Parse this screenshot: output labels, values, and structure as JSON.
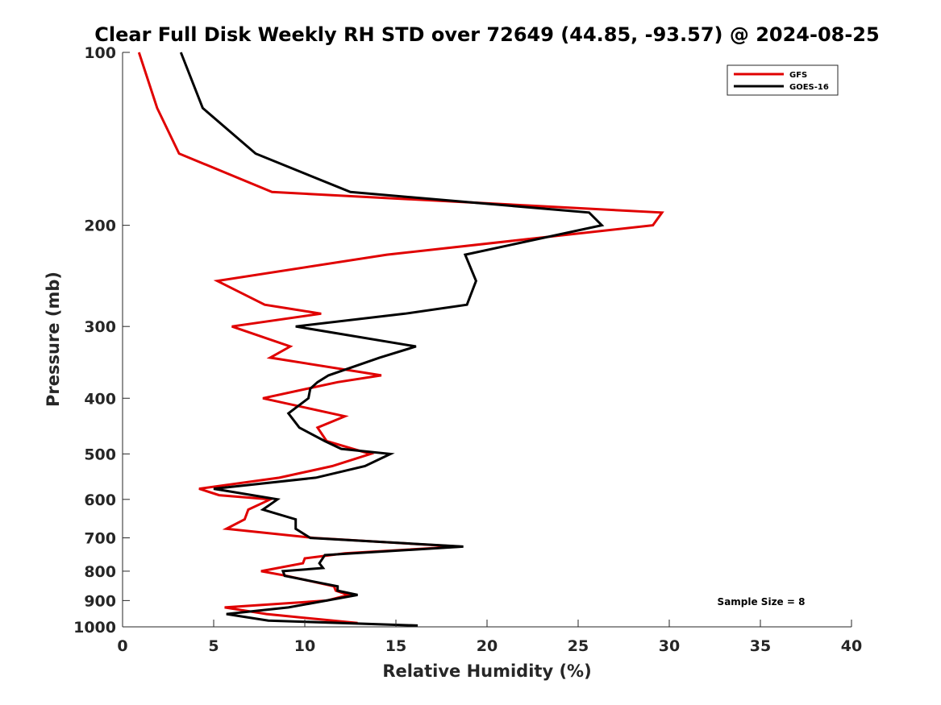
{
  "chart_data": {
    "type": "line",
    "title": "Clear Full Disk Weekly RH STD over 72649 (44.85, -93.57) @ 2024-08-25",
    "xlabel": "Relative Humidity (%)",
    "ylabel": "Pressure (mb)",
    "xlim": [
      0,
      40
    ],
    "ylim": [
      100,
      1000
    ],
    "yscale": "log",
    "y_reversed": true,
    "x_ticks": [
      0,
      5,
      10,
      15,
      20,
      25,
      30,
      35,
      40
    ],
    "y_ticks": [
      100,
      200,
      300,
      400,
      500,
      600,
      700,
      800,
      900,
      1000
    ],
    "grid": false,
    "legend_position": "top-right",
    "annotation": "Sample Size = 8",
    "series": [
      {
        "name": "GFS",
        "color": "#e00000",
        "points": [
          [
            0.9,
            100
          ],
          [
            1.9,
            125
          ],
          [
            3.1,
            150
          ],
          [
            8.2,
            175
          ],
          [
            29.6,
            190
          ],
          [
            29.1,
            200
          ],
          [
            14.5,
            225
          ],
          [
            5.2,
            250
          ],
          [
            7.8,
            275
          ],
          [
            10.9,
            285
          ],
          [
            6.0,
            300
          ],
          [
            9.2,
            325
          ],
          [
            8.1,
            340
          ],
          [
            14.2,
            365
          ],
          [
            11.8,
            375
          ],
          [
            7.7,
            400
          ],
          [
            12.2,
            430
          ],
          [
            10.7,
            450
          ],
          [
            11.2,
            475
          ],
          [
            13.6,
            500
          ],
          [
            11.5,
            525
          ],
          [
            8.6,
            550
          ],
          [
            4.2,
            575
          ],
          [
            5.3,
            590
          ],
          [
            8.1,
            600
          ],
          [
            6.9,
            625
          ],
          [
            6.7,
            650
          ],
          [
            5.7,
            675
          ],
          [
            10.5,
            700
          ],
          [
            18.5,
            725
          ],
          [
            12.2,
            745
          ],
          [
            10.0,
            760
          ],
          [
            9.9,
            775
          ],
          [
            7.6,
            800
          ],
          [
            9.0,
            815
          ],
          [
            11.6,
            850
          ],
          [
            11.7,
            865
          ],
          [
            12.4,
            880
          ],
          [
            11.2,
            900
          ],
          [
            5.6,
            925
          ],
          [
            7.9,
            950
          ],
          [
            12.9,
            985
          ]
        ]
      },
      {
        "name": "GOES-16",
        "color": "#000000",
        "points": [
          [
            3.2,
            100
          ],
          [
            4.4,
            125
          ],
          [
            7.3,
            150
          ],
          [
            12.5,
            175
          ],
          [
            25.6,
            190
          ],
          [
            26.3,
            200
          ],
          [
            18.8,
            225
          ],
          [
            19.4,
            250
          ],
          [
            18.9,
            275
          ],
          [
            15.5,
            285
          ],
          [
            9.5,
            300
          ],
          [
            16.1,
            325
          ],
          [
            14.1,
            340
          ],
          [
            11.3,
            365
          ],
          [
            10.7,
            375
          ],
          [
            10.3,
            385
          ],
          [
            10.2,
            400
          ],
          [
            9.1,
            425
          ],
          [
            9.7,
            450
          ],
          [
            11.1,
            475
          ],
          [
            12.0,
            490
          ],
          [
            14.7,
            500
          ],
          [
            13.3,
            525
          ],
          [
            10.6,
            550
          ],
          [
            5.0,
            575
          ],
          [
            8.5,
            600
          ],
          [
            7.7,
            625
          ],
          [
            9.5,
            650
          ],
          [
            9.5,
            675
          ],
          [
            10.3,
            700
          ],
          [
            18.7,
            725
          ],
          [
            11.1,
            750
          ],
          [
            10.8,
            775
          ],
          [
            11.0,
            790
          ],
          [
            8.8,
            800
          ],
          [
            8.9,
            815
          ],
          [
            11.8,
            850
          ],
          [
            11.8,
            865
          ],
          [
            12.9,
            880
          ],
          [
            9.1,
            925
          ],
          [
            5.7,
            950
          ],
          [
            8.0,
            975
          ],
          [
            16.2,
            995
          ]
        ]
      }
    ]
  }
}
